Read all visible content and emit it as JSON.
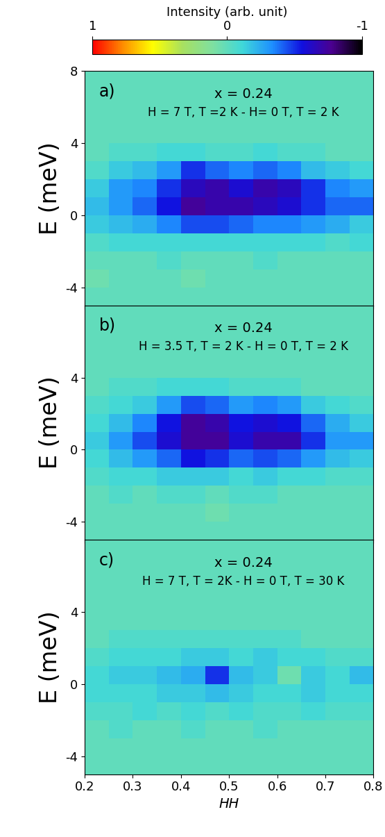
{
  "colorbar": {
    "label": "Intensity (arb. unit)",
    "clim": [
      -1,
      1
    ],
    "ticks": [
      1,
      0,
      -1
    ]
  },
  "chart_data": [
    {
      "type": "heatmap",
      "annotations": [
        "a)",
        "x = 0.24",
        "H = 7 T, T =2 K - H= 0 T, T = 2 K"
      ],
      "ylabel": "E (meV)",
      "xlim": [
        0.2,
        0.8
      ],
      "ylim": [
        -5,
        8
      ],
      "xticks": [
        0.2,
        0.3,
        0.4,
        0.5,
        0.6,
        0.7,
        0.8
      ],
      "yticks": [
        -4,
        0,
        4,
        8
      ],
      "tick_labels": "y",
      "x_edges": [
        0.2,
        0.25,
        0.3,
        0.35,
        0.4,
        0.45,
        0.5,
        0.55,
        0.6,
        0.65,
        0.7,
        0.75,
        0.8
      ],
      "y_edges": [
        -5,
        -4,
        -3,
        -2,
        -1,
        0,
        1,
        2,
        3,
        4,
        5,
        6,
        7,
        8
      ],
      "cells": [
        [
          0,
          0,
          0,
          0,
          0,
          0,
          0,
          0,
          0,
          0,
          0,
          0
        ],
        [
          0.05,
          0,
          0,
          0,
          0.05,
          0,
          0,
          0,
          0,
          0,
          0,
          0
        ],
        [
          0,
          0,
          0,
          -0.05,
          0,
          0,
          0,
          -0.05,
          0,
          0,
          0,
          0
        ],
        [
          -0.05,
          -0.1,
          -0.1,
          -0.1,
          -0.1,
          -0.1,
          -0.1,
          -0.1,
          -0.1,
          -0.1,
          -0.05,
          -0.1
        ],
        [
          -0.15,
          -0.2,
          -0.25,
          -0.35,
          -0.45,
          -0.45,
          -0.4,
          -0.35,
          -0.35,
          -0.3,
          -0.25,
          -0.15
        ],
        [
          -0.2,
          -0.3,
          -0.4,
          -0.55,
          -0.75,
          -0.7,
          -0.7,
          -0.65,
          -0.6,
          -0.5,
          -0.4,
          -0.4
        ],
        [
          -0.15,
          -0.3,
          -0.35,
          -0.5,
          -0.65,
          -0.7,
          -0.6,
          -0.7,
          -0.65,
          -0.5,
          -0.35,
          -0.3
        ],
        [
          -0.05,
          -0.15,
          -0.2,
          -0.3,
          -0.5,
          -0.4,
          -0.35,
          -0.4,
          -0.35,
          -0.2,
          -0.15,
          -0.1
        ],
        [
          0,
          -0.05,
          -0.05,
          -0.1,
          -0.1,
          -0.05,
          -0.05,
          -0.1,
          -0.05,
          -0.05,
          0,
          0
        ],
        [
          0,
          0,
          0,
          0,
          0,
          0,
          0,
          0,
          0,
          0,
          0,
          0
        ],
        [
          0,
          0,
          0,
          0,
          0,
          0,
          0,
          0,
          0,
          0,
          0,
          0
        ],
        [
          0,
          0,
          0,
          0,
          0,
          0,
          0,
          0,
          0,
          0,
          0,
          0
        ],
        [
          0,
          0,
          0,
          0,
          0,
          0,
          0,
          0,
          0,
          0,
          0,
          0
        ]
      ]
    },
    {
      "type": "heatmap",
      "annotations": [
        "b)",
        "x = 0.24",
        "H = 3.5 T, T = 2 K - H = 0 T, T = 2 K"
      ],
      "ylabel": "E (meV)",
      "xlim": [
        0.2,
        0.8
      ],
      "ylim": [
        -5,
        8
      ],
      "xticks": [
        0.2,
        0.3,
        0.4,
        0.5,
        0.6,
        0.7,
        0.8
      ],
      "yticks": [
        -4,
        0,
        4
      ],
      "tick_labels": "y",
      "x_edges": [
        0.2,
        0.25,
        0.3,
        0.35,
        0.4,
        0.45,
        0.5,
        0.55,
        0.6,
        0.65,
        0.7,
        0.75,
        0.8
      ],
      "y_edges": [
        -5,
        -4,
        -3,
        -2,
        -1,
        0,
        1,
        2,
        3,
        4,
        5,
        6,
        7,
        8
      ],
      "cells": [
        [
          0,
          0,
          0,
          0,
          0,
          0,
          0,
          0,
          0,
          0,
          0,
          0
        ],
        [
          0,
          0,
          0,
          0,
          0,
          0.05,
          0,
          0,
          0,
          0,
          0,
          0
        ],
        [
          0,
          -0.05,
          0,
          -0.05,
          -0.05,
          0,
          -0.05,
          -0.05,
          0,
          0,
          0,
          0
        ],
        [
          -0.05,
          -0.1,
          -0.1,
          -0.15,
          -0.15,
          -0.15,
          -0.1,
          -0.15,
          -0.1,
          -0.1,
          -0.05,
          -0.05
        ],
        [
          -0.1,
          -0.2,
          -0.3,
          -0.4,
          -0.55,
          -0.5,
          -0.4,
          -0.45,
          -0.4,
          -0.3,
          -0.2,
          -0.15
        ],
        [
          -0.15,
          -0.3,
          -0.45,
          -0.6,
          -0.75,
          -0.75,
          -0.6,
          -0.7,
          -0.7,
          -0.5,
          -0.3,
          -0.3
        ],
        [
          -0.1,
          -0.2,
          -0.35,
          -0.55,
          -0.75,
          -0.7,
          -0.55,
          -0.6,
          -0.55,
          -0.4,
          -0.25,
          -0.15
        ],
        [
          -0.05,
          -0.1,
          -0.15,
          -0.3,
          -0.45,
          -0.4,
          -0.3,
          -0.35,
          -0.3,
          -0.15,
          -0.1,
          -0.05
        ],
        [
          0,
          -0.05,
          -0.05,
          -0.1,
          -0.1,
          -0.1,
          -0.05,
          -0.05,
          -0.05,
          0,
          0,
          0
        ],
        [
          0,
          0,
          0,
          0,
          0,
          0,
          0,
          0,
          0,
          0,
          0,
          0
        ],
        [
          0,
          0,
          0,
          0,
          0,
          0,
          0,
          0,
          0,
          0,
          0,
          0
        ],
        [
          0,
          0,
          0,
          0,
          0,
          0,
          0,
          0,
          0,
          0,
          0,
          0
        ],
        [
          0,
          0,
          0,
          0,
          0,
          0,
          0,
          0,
          0,
          0,
          0,
          0
        ]
      ]
    },
    {
      "type": "heatmap",
      "annotations": [
        "c)",
        "x = 0.24",
        "H = 7 T, T = 2K - H = 0 T, T = 30 K"
      ],
      "ylabel": "E (meV)",
      "xlabel": "HH",
      "xlim": [
        0.2,
        0.8
      ],
      "ylim": [
        -5,
        8
      ],
      "xticks": [
        0.2,
        0.3,
        0.4,
        0.5,
        0.6,
        0.7,
        0.8
      ],
      "yticks": [
        -4,
        0,
        4
      ],
      "x_edges": [
        0.2,
        0.25,
        0.3,
        0.35,
        0.4,
        0.45,
        0.5,
        0.55,
        0.6,
        0.65,
        0.7,
        0.75,
        0.8
      ],
      "y_edges": [
        -5,
        -4,
        -3,
        -2,
        -1,
        0,
        1,
        2,
        3,
        4,
        5,
        6,
        7,
        8
      ],
      "cells": [
        [
          0,
          0,
          0,
          0,
          0,
          0,
          0,
          0,
          0,
          0,
          0,
          0
        ],
        [
          0,
          0,
          0,
          0,
          0,
          0,
          0,
          0,
          0,
          0,
          0,
          0
        ],
        [
          0,
          -0.05,
          0,
          0,
          -0.05,
          0,
          0,
          -0.05,
          0,
          0,
          0,
          0
        ],
        [
          -0.05,
          -0.05,
          -0.1,
          -0.05,
          -0.1,
          -0.05,
          -0.1,
          -0.05,
          -0.05,
          -0.1,
          -0.05,
          -0.05
        ],
        [
          -0.1,
          -0.1,
          -0.1,
          -0.15,
          -0.15,
          -0.2,
          -0.15,
          -0.1,
          -0.1,
          -0.15,
          -0.1,
          -0.1
        ],
        [
          -0.1,
          -0.15,
          -0.15,
          -0.2,
          -0.25,
          -0.5,
          -0.2,
          -0.15,
          0.05,
          -0.15,
          -0.1,
          -0.2
        ],
        [
          -0.05,
          -0.1,
          -0.1,
          -0.1,
          -0.15,
          -0.15,
          -0.1,
          -0.15,
          -0.1,
          -0.1,
          -0.05,
          -0.05
        ],
        [
          0,
          -0.05,
          -0.05,
          -0.05,
          -0.05,
          -0.05,
          -0.05,
          -0.05,
          -0.05,
          0,
          0,
          0
        ],
        [
          0,
          0,
          0,
          0,
          0,
          0,
          0,
          0,
          0,
          0,
          0,
          0
        ],
        [
          0,
          0,
          0,
          0,
          0,
          0,
          0,
          0,
          0,
          0,
          0,
          0
        ],
        [
          0,
          0,
          0,
          0,
          0,
          0,
          0,
          0,
          0,
          0,
          0,
          0
        ],
        [
          0,
          0,
          0,
          0,
          0,
          0,
          0,
          0,
          0,
          0,
          0,
          0
        ],
        [
          0,
          0,
          0,
          0,
          0,
          0,
          0,
          0,
          0,
          0,
          0,
          0
        ]
      ]
    }
  ]
}
